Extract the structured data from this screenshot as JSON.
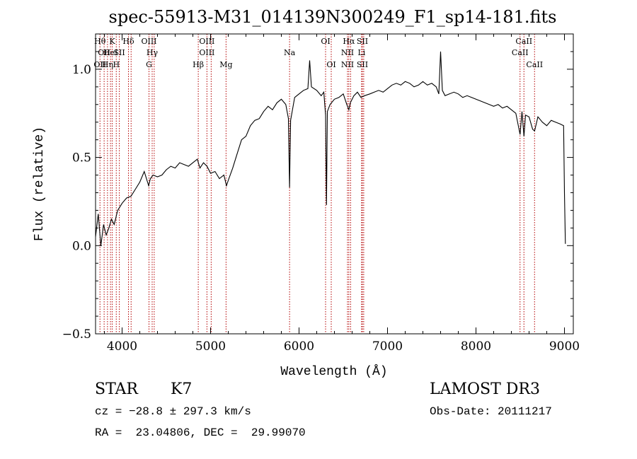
{
  "chart_data": {
    "type": "line",
    "title": "spec-55913-M31_014139N300249_F1_sp14-181.fits",
    "xlabel": "Wavelength (Å)",
    "ylabel": "Flux (relative)",
    "xlim": [
      3700,
      9100
    ],
    "ylim": [
      -0.5,
      1.2
    ],
    "xticks": [
      "4000",
      "5000",
      "6000",
      "7000",
      "8000",
      "9000"
    ],
    "yticks": [
      "−0.5",
      "0.0",
      "0.5",
      "1.0"
    ],
    "grid": false,
    "series": [
      {
        "color": "#000000",
        "points": [
          [
            3700,
            0.05
          ],
          [
            3730,
            0.18
          ],
          [
            3760,
            0.0
          ],
          [
            3790,
            0.12
          ],
          [
            3820,
            0.06
          ],
          [
            3850,
            0.1
          ],
          [
            3880,
            0.15
          ],
          [
            3910,
            0.12
          ],
          [
            3950,
            0.2
          ],
          [
            4000,
            0.24
          ],
          [
            4050,
            0.27
          ],
          [
            4100,
            0.28
          ],
          [
            4150,
            0.32
          ],
          [
            4200,
            0.36
          ],
          [
            4250,
            0.42
          ],
          [
            4300,
            0.34
          ],
          [
            4320,
            0.38
          ],
          [
            4350,
            0.4
          ],
          [
            4400,
            0.39
          ],
          [
            4450,
            0.4
          ],
          [
            4500,
            0.43
          ],
          [
            4550,
            0.45
          ],
          [
            4600,
            0.44
          ],
          [
            4650,
            0.47
          ],
          [
            4700,
            0.46
          ],
          [
            4750,
            0.45
          ],
          [
            4800,
            0.47
          ],
          [
            4850,
            0.49
          ],
          [
            4880,
            0.44
          ],
          [
            4920,
            0.47
          ],
          [
            4960,
            0.45
          ],
          [
            5000,
            0.41
          ],
          [
            5050,
            0.42
          ],
          [
            5100,
            0.38
          ],
          [
            5150,
            0.4
          ],
          [
            5180,
            0.34
          ],
          [
            5200,
            0.37
          ],
          [
            5250,
            0.44
          ],
          [
            5300,
            0.52
          ],
          [
            5350,
            0.6
          ],
          [
            5400,
            0.62
          ],
          [
            5450,
            0.68
          ],
          [
            5500,
            0.71
          ],
          [
            5550,
            0.72
          ],
          [
            5600,
            0.76
          ],
          [
            5650,
            0.79
          ],
          [
            5700,
            0.77
          ],
          [
            5750,
            0.81
          ],
          [
            5800,
            0.83
          ],
          [
            5850,
            0.8
          ],
          [
            5880,
            0.72
          ],
          [
            5893,
            0.33
          ],
          [
            5905,
            0.71
          ],
          [
            5950,
            0.84
          ],
          [
            6000,
            0.86
          ],
          [
            6050,
            0.88
          ],
          [
            6100,
            0.89
          ],
          [
            6120,
            1.05
          ],
          [
            6140,
            0.9
          ],
          [
            6200,
            0.88
          ],
          [
            6250,
            0.85
          ],
          [
            6280,
            0.87
          ],
          [
            6300,
            0.74
          ],
          [
            6310,
            0.23
          ],
          [
            6320,
            0.76
          ],
          [
            6350,
            0.8
          ],
          [
            6400,
            0.83
          ],
          [
            6450,
            0.84
          ],
          [
            6500,
            0.86
          ],
          [
            6540,
            0.8
          ],
          [
            6563,
            0.77
          ],
          [
            6580,
            0.81
          ],
          [
            6620,
            0.85
          ],
          [
            6660,
            0.87
          ],
          [
            6700,
            0.84
          ],
          [
            6740,
            0.85
          ],
          [
            6800,
            0.86
          ],
          [
            6850,
            0.87
          ],
          [
            6900,
            0.88
          ],
          [
            6950,
            0.87
          ],
          [
            7000,
            0.89
          ],
          [
            7050,
            0.91
          ],
          [
            7100,
            0.92
          ],
          [
            7150,
            0.91
          ],
          [
            7200,
            0.93
          ],
          [
            7250,
            0.92
          ],
          [
            7300,
            0.9
          ],
          [
            7350,
            0.91
          ],
          [
            7400,
            0.93
          ],
          [
            7450,
            0.91
          ],
          [
            7500,
            0.92
          ],
          [
            7550,
            0.9
          ],
          [
            7580,
            0.86
          ],
          [
            7600,
            1.1
          ],
          [
            7620,
            0.88
          ],
          [
            7650,
            0.85
          ],
          [
            7700,
            0.86
          ],
          [
            7750,
            0.87
          ],
          [
            7800,
            0.86
          ],
          [
            7850,
            0.84
          ],
          [
            7900,
            0.85
          ],
          [
            7950,
            0.84
          ],
          [
            8000,
            0.83
          ],
          [
            8050,
            0.82
          ],
          [
            8100,
            0.81
          ],
          [
            8150,
            0.8
          ],
          [
            8200,
            0.79
          ],
          [
            8250,
            0.8
          ],
          [
            8300,
            0.78
          ],
          [
            8350,
            0.79
          ],
          [
            8400,
            0.77
          ],
          [
            8450,
            0.75
          ],
          [
            8498,
            0.63
          ],
          [
            8520,
            0.76
          ],
          [
            8542,
            0.62
          ],
          [
            8560,
            0.74
          ],
          [
            8600,
            0.73
          ],
          [
            8640,
            0.66
          ],
          [
            8662,
            0.65
          ],
          [
            8700,
            0.73
          ],
          [
            8750,
            0.7
          ],
          [
            8800,
            0.68
          ],
          [
            8850,
            0.71
          ],
          [
            8900,
            0.7
          ],
          [
            8950,
            0.69
          ],
          [
            8990,
            0.68
          ],
          [
            9000,
            0.3
          ],
          [
            9010,
            0.01
          ]
        ]
      }
    ],
    "lines": [
      {
        "w": 3750,
        "labels": [
          {
            "row": 0,
            "t": "Hθ"
          },
          {
            "row": 2,
            "t": "OII"
          }
        ]
      },
      {
        "w": 3797,
        "labels": [
          {
            "row": 1,
            "t": "OII"
          }
        ]
      },
      {
        "w": 3835,
        "labels": [
          {
            "row": 2,
            "t": "Hη"
          }
        ]
      },
      {
        "w": 3869,
        "labels": [
          {
            "row": 1,
            "t": "HeI"
          }
        ]
      },
      {
        "w": 3889,
        "labels": [
          {
            "row": 0,
            "t": "K"
          }
        ]
      },
      {
        "w": 3934,
        "labels": [
          {
            "row": 2,
            "t": "H"
          }
        ]
      },
      {
        "w": 3969,
        "labels": [
          {
            "row": 1,
            "t": "SII"
          }
        ]
      },
      {
        "w": 4072,
        "labels": [
          {
            "row": 0,
            "t": "Hδ"
          }
        ]
      },
      {
        "w": 4102,
        "labels": []
      },
      {
        "w": 4304,
        "labels": [
          {
            "row": 0,
            "t": "OIII"
          },
          {
            "row": 2,
            "t": "G"
          }
        ]
      },
      {
        "w": 4340,
        "labels": [
          {
            "row": 1,
            "t": "Hγ"
          }
        ]
      },
      {
        "w": 4363,
        "labels": []
      },
      {
        "w": 4861,
        "labels": [
          {
            "row": 2,
            "t": "Hβ"
          }
        ]
      },
      {
        "w": 4959,
        "labels": [
          {
            "row": 0,
            "t": "OIII"
          },
          {
            "row": 1,
            "t": "OIII"
          }
        ]
      },
      {
        "w": 5007,
        "labels": []
      },
      {
        "w": 5175,
        "labels": [
          {
            "row": 2,
            "t": "Mg"
          }
        ]
      },
      {
        "w": 5893,
        "labels": [
          {
            "row": 1,
            "t": "Na"
          }
        ]
      },
      {
        "w": 6300,
        "labels": [
          {
            "row": 0,
            "t": "OI"
          }
        ]
      },
      {
        "w": 6364,
        "labels": [
          {
            "row": 2,
            "t": "OI"
          }
        ]
      },
      {
        "w": 6548,
        "labels": [
          {
            "row": 1,
            "t": "NII"
          },
          {
            "row": 2,
            "t": "NII"
          }
        ]
      },
      {
        "w": 6563,
        "labels": [
          {
            "row": 0,
            "t": "Hα"
          }
        ]
      },
      {
        "w": 6583,
        "labels": []
      },
      {
        "w": 6707,
        "labels": [
          {
            "row": 1,
            "t": "Li"
          }
        ]
      },
      {
        "w": 6716,
        "labels": [
          {
            "row": 0,
            "t": "SII"
          },
          {
            "row": 2,
            "t": "SII"
          }
        ]
      },
      {
        "w": 6731,
        "labels": []
      },
      {
        "w": 8498,
        "labels": [
          {
            "row": 1,
            "t": "CaII"
          }
        ]
      },
      {
        "w": 8542,
        "labels": [
          {
            "row": 0,
            "t": "CaII"
          }
        ]
      },
      {
        "w": 8662,
        "labels": [
          {
            "row": 2,
            "t": "CaII"
          }
        ]
      }
    ]
  },
  "info": {
    "object_type": "STAR",
    "subclass": "K7",
    "cz": "cz = −28.8 ± 297.3 km/s",
    "radec": "RA =  23.04806, DEC =  29.99070",
    "survey": "LAMOST DR3",
    "obs_date": "Obs-Date: 20111217"
  }
}
